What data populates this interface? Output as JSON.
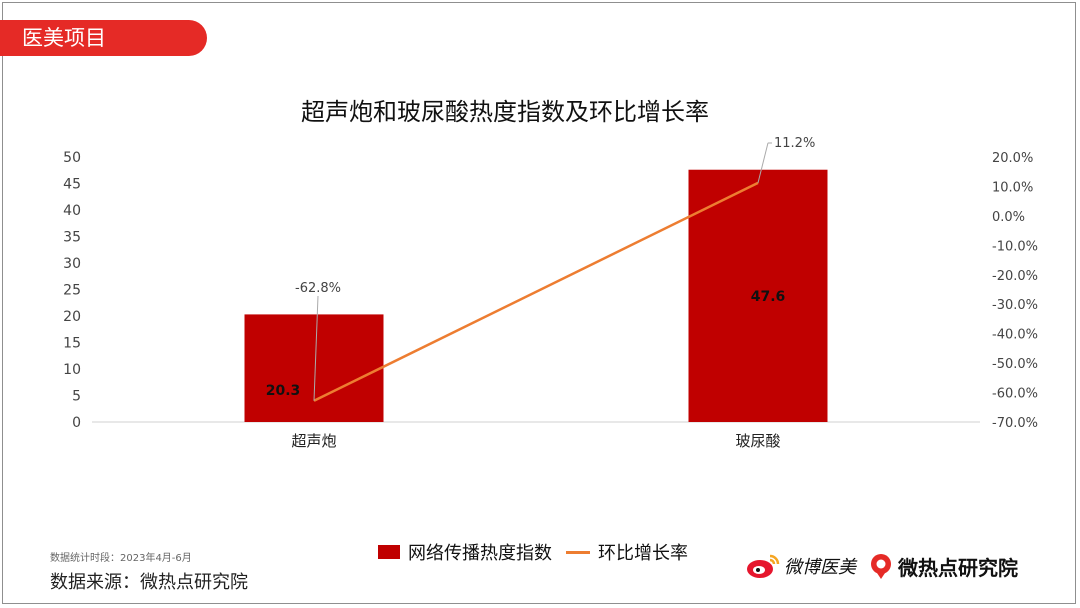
{
  "header": {
    "section_tag": "医美项目"
  },
  "chart_data": {
    "type": "bar",
    "title": "超声炮和玻尿酸热度指数及环比增长率",
    "categories": [
      "超声炮",
      "玻尿酸"
    ],
    "series": [
      {
        "name": "网络传播热度指数",
        "kind": "bar",
        "axis": "left",
        "values": [
          20.3,
          47.6
        ],
        "labels": [
          "20.3",
          "47.6"
        ],
        "color": "#c00000"
      },
      {
        "name": "环比增长率",
        "kind": "line",
        "axis": "right",
        "values": [
          -62.8,
          11.2
        ],
        "labels": [
          "-62.8%",
          "11.2%"
        ],
        "color": "#ed7d31"
      }
    ],
    "y_left": {
      "ylim": [
        0,
        50
      ],
      "ticks": [
        "0",
        "5",
        "10",
        "15",
        "20",
        "25",
        "30",
        "35",
        "40",
        "45",
        "50"
      ]
    },
    "y_right": {
      "ylim": [
        -70,
        20
      ],
      "ticks": [
        "-70.0%",
        "-60.0%",
        "-50.0%",
        "-40.0%",
        "-30.0%",
        "-20.0%",
        "-10.0%",
        "0.0%",
        "10.0%",
        "20.0%"
      ]
    },
    "grid": false,
    "legend_position": "bottom"
  },
  "footer": {
    "period_note": "数据统计时段：2023年4月-6月",
    "source": "数据来源：微热点研究院",
    "brand_weibo": "微博医美",
    "brand_wrd": "微热点研究院",
    "accent_color": "#e52a26"
  }
}
